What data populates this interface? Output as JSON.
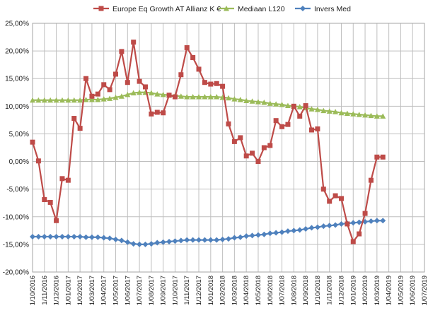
{
  "chart_data": {
    "type": "line",
    "title": "",
    "xlabel": "",
    "ylabel": "",
    "ylim": [
      -0.2,
      0.25
    ],
    "y_tick_step": 0.05,
    "y_tick_labels": [
      "25,00%",
      "20,00%",
      "15,00%",
      "10,00%",
      "5,00%",
      "0,00%",
      "-5,00%",
      "-10,00%",
      "-15,00%",
      "-20,00%"
    ],
    "x_tick_labels": [
      "1/10/2016",
      "1/11/2016",
      "1/12/2016",
      "1/01/2017",
      "1/02/2017",
      "1/03/2017",
      "1/04/2017",
      "1/05/2017",
      "1/06/2017",
      "1/07/2017",
      "1/08/2017",
      "1/09/2017",
      "1/10/2017",
      "1/11/2017",
      "1/12/2017",
      "1/01/2018",
      "1/02/2018",
      "1/03/2018",
      "1/04/2018",
      "1/05/2018",
      "1/06/2018",
      "1/07/2018",
      "1/08/2018",
      "1/09/2018",
      "1/10/2018",
      "1/11/2018",
      "1/12/2018",
      "1/01/2019",
      "1/02/2019",
      "1/03/2019",
      "1/04/2019",
      "1/05/2019",
      "1/06/2019",
      "1/07/2019"
    ],
    "x_range_months": [
      0,
      33
    ],
    "grid": true,
    "legend_position": "top",
    "series": [
      {
        "name": "Europe Eq Growth AT Allianz K €",
        "color": "#be4b48",
        "marker": "square",
        "x": [
          0,
          0.5,
          1,
          1.5,
          2,
          2.5,
          3,
          3.5,
          4,
          4.5,
          5,
          5.5,
          6,
          6.5,
          7,
          7.5,
          8,
          8.5,
          9,
          9.5,
          10,
          10.5,
          11,
          11.5,
          12,
          12.5,
          13,
          13.5,
          14,
          14.5,
          15,
          15.5,
          16,
          16.5,
          17,
          17.5,
          18,
          18.5,
          19,
          19.5,
          20,
          20.5,
          21,
          21.5,
          22,
          22.5,
          23,
          23.5,
          24,
          24.5,
          25,
          25.5,
          26,
          26.5,
          27,
          27.5,
          28,
          28.5,
          29,
          29.5
        ],
        "y": [
          0.035,
          0.001,
          -0.069,
          -0.074,
          -0.107,
          -0.031,
          -0.034,
          0.078,
          0.06,
          0.15,
          0.118,
          0.122,
          0.139,
          0.13,
          0.158,
          0.199,
          0.143,
          0.216,
          0.145,
          0.135,
          0.086,
          0.089,
          0.088,
          0.12,
          0.117,
          0.157,
          0.206,
          0.188,
          0.167,
          0.143,
          0.14,
          0.141,
          0.136,
          0.068,
          0.036,
          0.043,
          0.01,
          0.015,
          0.0,
          0.025,
          0.029,
          0.074,
          0.063,
          0.067,
          0.1,
          0.082,
          0.101,
          0.057,
          0.059,
          -0.05,
          -0.072,
          -0.062,
          -0.067,
          -0.113,
          -0.145,
          -0.131,
          -0.094,
          -0.034,
          0.008,
          0.008
        ]
      },
      {
        "name": "Mediaan L120",
        "color": "#9bbb59",
        "marker": "triangle",
        "x": [
          0,
          0.5,
          1,
          1.5,
          2,
          2.5,
          3,
          3.5,
          4,
          4.5,
          5,
          5.5,
          6,
          6.5,
          7,
          7.5,
          8,
          8.5,
          9,
          9.5,
          10,
          10.5,
          11,
          11.5,
          12,
          12.5,
          13,
          13.5,
          14,
          14.5,
          15,
          15.5,
          16,
          16.5,
          17,
          17.5,
          18,
          18.5,
          19,
          19.5,
          20,
          20.5,
          21,
          21.5,
          22,
          22.5,
          23,
          23.5,
          24,
          24.5,
          25,
          25.5,
          26,
          26.5,
          27,
          27.5,
          28,
          28.5,
          29,
          29.5
        ],
        "y": [
          0.111,
          0.111,
          0.111,
          0.111,
          0.111,
          0.111,
          0.111,
          0.111,
          0.111,
          0.112,
          0.112,
          0.112,
          0.113,
          0.114,
          0.116,
          0.118,
          0.121,
          0.124,
          0.125,
          0.125,
          0.124,
          0.122,
          0.121,
          0.12,
          0.119,
          0.118,
          0.117,
          0.117,
          0.117,
          0.117,
          0.117,
          0.117,
          0.116,
          0.115,
          0.113,
          0.112,
          0.11,
          0.109,
          0.108,
          0.107,
          0.105,
          0.104,
          0.103,
          0.101,
          0.1,
          0.099,
          0.097,
          0.095,
          0.094,
          0.092,
          0.091,
          0.09,
          0.088,
          0.087,
          0.086,
          0.085,
          0.084,
          0.083,
          0.082,
          0.082
        ]
      },
      {
        "name": "Invers Med",
        "color": "#4f81bd",
        "marker": "diamond",
        "x": [
          0,
          0.5,
          1,
          1.5,
          2,
          2.5,
          3,
          3.5,
          4,
          4.5,
          5,
          5.5,
          6,
          6.5,
          7,
          7.5,
          8,
          8.5,
          9,
          9.5,
          10,
          10.5,
          11,
          11.5,
          12,
          12.5,
          13,
          13.5,
          14,
          14.5,
          15,
          15.5,
          16,
          16.5,
          17,
          17.5,
          18,
          18.5,
          19,
          19.5,
          20,
          20.5,
          21,
          21.5,
          22,
          22.5,
          23,
          23.5,
          24,
          24.5,
          25,
          25.5,
          26,
          26.5,
          27,
          27.5,
          28,
          28.5,
          29,
          29.5
        ],
        "y": [
          -0.136,
          -0.136,
          -0.136,
          -0.136,
          -0.136,
          -0.136,
          -0.136,
          -0.136,
          -0.136,
          -0.137,
          -0.137,
          -0.137,
          -0.138,
          -0.139,
          -0.141,
          -0.143,
          -0.146,
          -0.149,
          -0.15,
          -0.15,
          -0.149,
          -0.147,
          -0.146,
          -0.145,
          -0.144,
          -0.143,
          -0.142,
          -0.142,
          -0.142,
          -0.142,
          -0.142,
          -0.142,
          -0.141,
          -0.14,
          -0.138,
          -0.137,
          -0.135,
          -0.134,
          -0.133,
          -0.132,
          -0.13,
          -0.129,
          -0.128,
          -0.126,
          -0.125,
          -0.124,
          -0.122,
          -0.12,
          -0.119,
          -0.117,
          -0.116,
          -0.115,
          -0.113,
          -0.112,
          -0.111,
          -0.11,
          -0.109,
          -0.108,
          -0.107,
          -0.107
        ]
      }
    ]
  }
}
